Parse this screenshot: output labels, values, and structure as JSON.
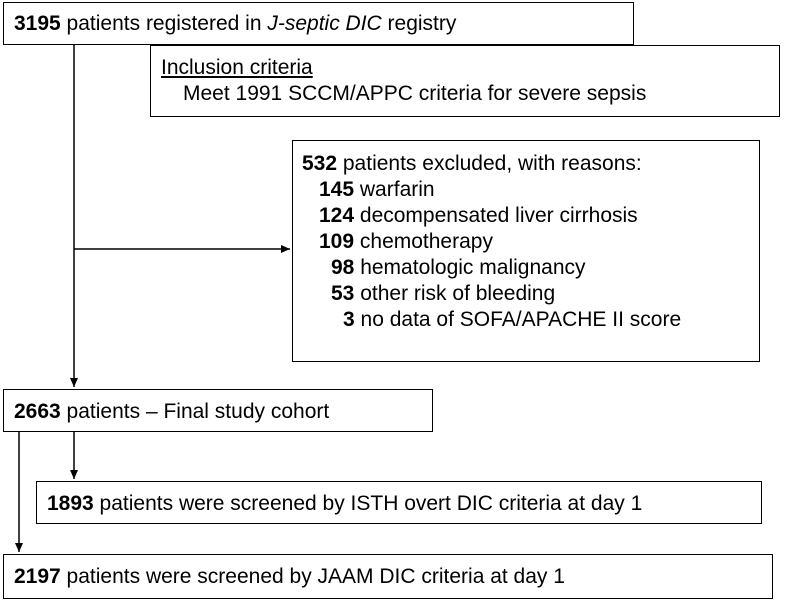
{
  "registry": {
    "count": "3195",
    "text_before": " patients registered in ",
    "registry_name": "J-septic DIC",
    "text_after": " registry"
  },
  "inclusion": {
    "heading": "Inclusion criteria",
    "criterion": "Meet 1991 SCCM/APPC criteria for severe sepsis"
  },
  "excluded": {
    "count": "532",
    "text": " patients excluded, with reasons:",
    "reasons": [
      {
        "count": "145",
        "label": "warfarin"
      },
      {
        "count": "124",
        "label": "decompensated liver cirrhosis"
      },
      {
        "count": "109",
        "label": "chemotherapy"
      },
      {
        "count": "98",
        "label": "hematologic malignancy"
      },
      {
        "count": "53",
        "label": "other risk of bleeding"
      },
      {
        "count": "3",
        "label": "no data of SOFA/APACHE II score"
      }
    ]
  },
  "cohort": {
    "count": "2663",
    "text": " patients – Final study cohort"
  },
  "isth": {
    "count": "1893",
    "text": " patients were screened by ISTH overt DIC criteria at day 1"
  },
  "jaam": {
    "count": "2197",
    "text": " patients were screened by JAAM DIC criteria at day 1"
  },
  "colors": {
    "line": "#000000",
    "background": "#ffffff"
  }
}
